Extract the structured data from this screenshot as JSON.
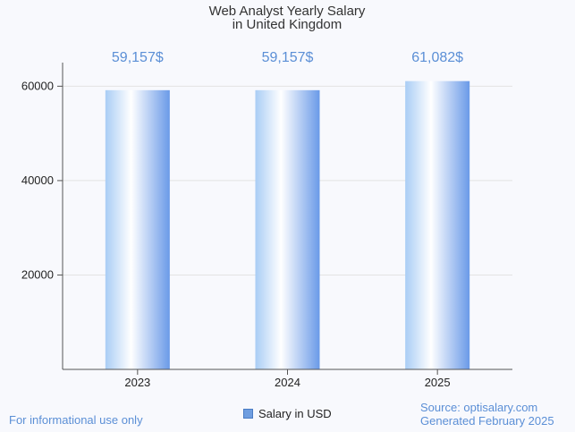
{
  "chart_data": {
    "type": "bar",
    "title_lines": [
      "Web Analyst Yearly Salary",
      "in United Kingdom"
    ],
    "categories": [
      "2023",
      "2024",
      "2025"
    ],
    "values": [
      59157,
      59157,
      61082
    ],
    "value_labels": [
      "59,157$",
      "59,157$",
      "61,082$"
    ],
    "yticks": [
      20000,
      40000,
      60000
    ],
    "ylim": [
      0,
      65000
    ],
    "xlabel": "",
    "ylabel": "",
    "legend": "Salary in USD",
    "legend_position": "bottom-center",
    "grid": true
  },
  "footer": {
    "disclaimer": "For informational use only",
    "source": "Source: optisalary.com",
    "generated": "Generated February 2025"
  },
  "colors": {
    "bar_light": "#ffffff",
    "bar_mid": "#b6d4f7",
    "bar_dark": "#6a9ae8",
    "label": "#5b8fd6"
  }
}
